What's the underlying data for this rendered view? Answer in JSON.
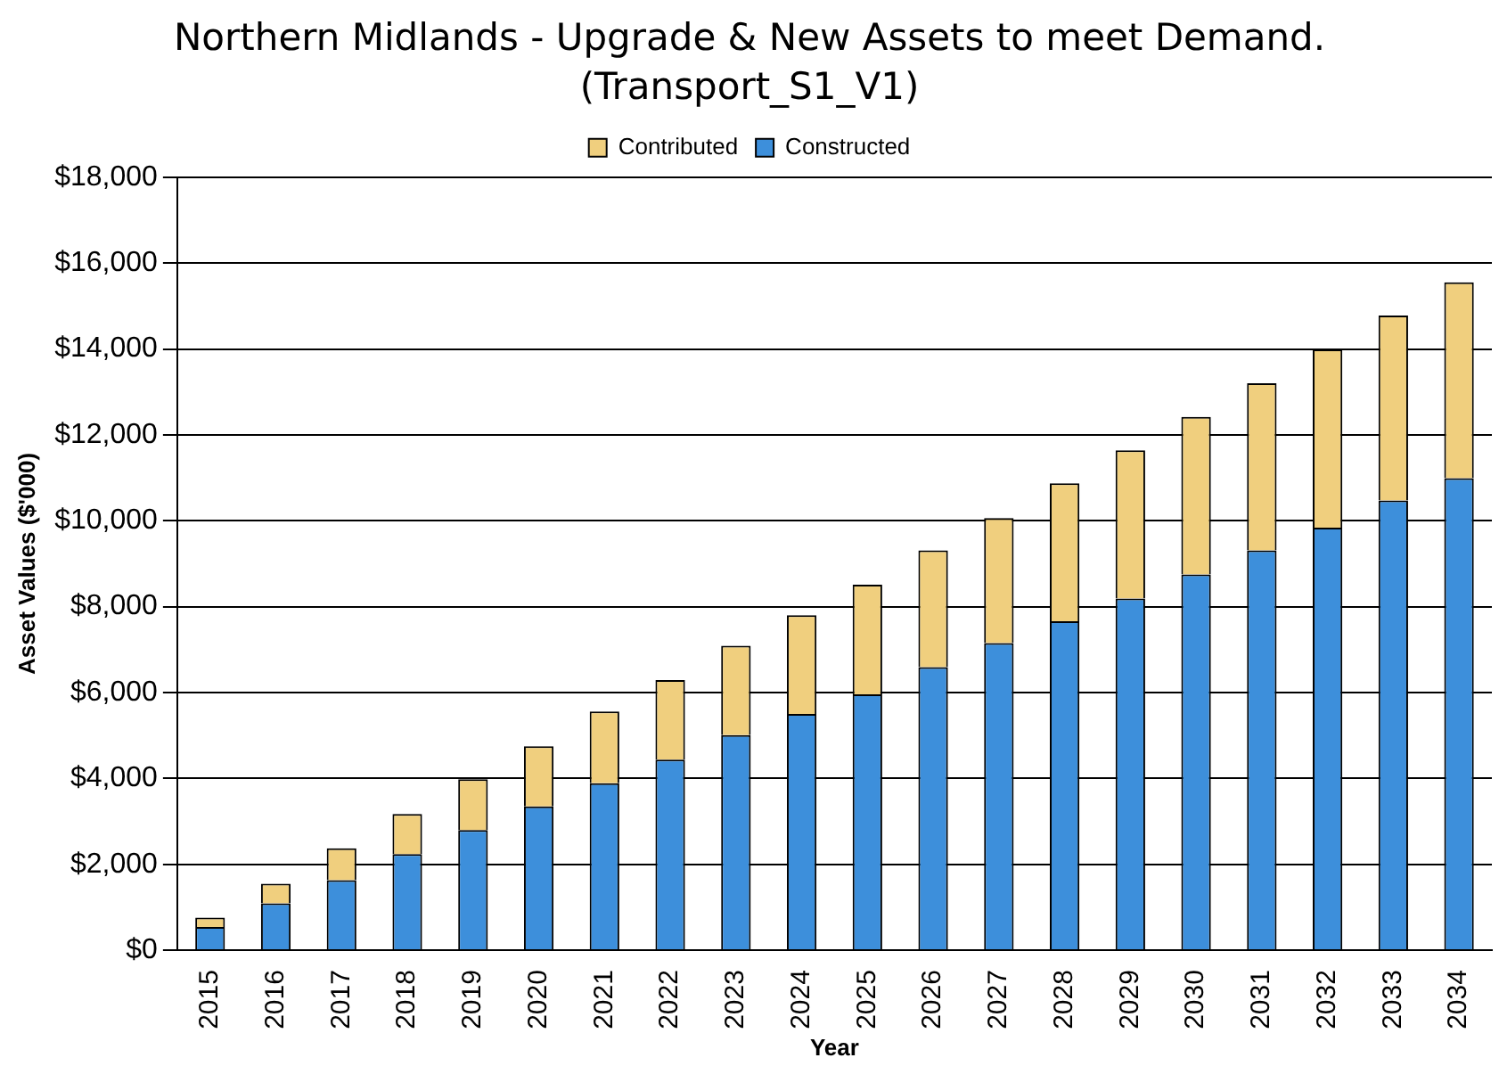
{
  "chart_data": {
    "type": "bar",
    "title": "Northern Midlands - Upgrade & New Assets to meet Demand.",
    "subtitle": "(Transport_S1_V1)",
    "xlabel": "Year",
    "ylabel": "Asset Values ($'000)",
    "categories": [
      "2015",
      "2016",
      "2017",
      "2018",
      "2019",
      "2020",
      "2021",
      "2022",
      "2023",
      "2024",
      "2025",
      "2026",
      "2027",
      "2028",
      "2029",
      "2030",
      "2031",
      "2032",
      "2033",
      "2034"
    ],
    "stacked": true,
    "grid": "y",
    "legend": "top",
    "series": [
      {
        "name": "Constructed",
        "color": "#3d8fdb",
        "values": [
          540,
          1090,
          1630,
          2240,
          2800,
          3350,
          3890,
          4440,
          5010,
          5500,
          5960,
          6590,
          7150,
          7660,
          8190,
          8750,
          9310,
          9840,
          10470,
          10990
        ]
      },
      {
        "name": "Contributed",
        "color": "#f0cf7e",
        "values": [
          220,
          460,
          740,
          930,
          1180,
          1400,
          1670,
          1850,
          2080,
          2300,
          2550,
          2720,
          2910,
          3210,
          3450,
          3670,
          3890,
          4150,
          4310,
          4560
        ]
      }
    ],
    "ylim": [
      0,
      18000
    ],
    "yticks": [
      {
        "value": 0,
        "label": "$0"
      },
      {
        "value": 2000,
        "label": "$2,000"
      },
      {
        "value": 4000,
        "label": "$4,000"
      },
      {
        "value": 6000,
        "label": "$6,000"
      },
      {
        "value": 8000,
        "label": "$8,000"
      },
      {
        "value": 10000,
        "label": "$10,000"
      },
      {
        "value": 12000,
        "label": "$12,000"
      },
      {
        "value": 14000,
        "label": "$14,000"
      },
      {
        "value": 16000,
        "label": "$16,000"
      },
      {
        "value": 18000,
        "label": "$18,000"
      }
    ]
  }
}
